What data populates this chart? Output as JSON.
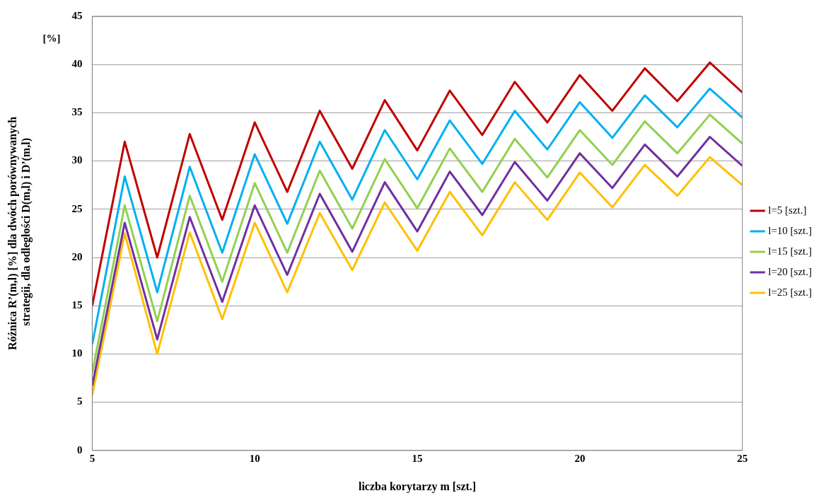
{
  "chart_data": {
    "type": "line",
    "xlabel": "liczba korytarzy m [szt.]",
    "ylabel": "Różnica R’(m,l) [%] dla dwóch porównywanych  strategii, dla odległości D(m,l) i D’(m,l)",
    "annotations": [
      "[%]"
    ],
    "x": [
      5,
      6,
      7,
      8,
      9,
      10,
      11,
      12,
      13,
      14,
      15,
      16,
      17,
      18,
      19,
      20,
      21,
      22,
      23,
      24,
      25
    ],
    "xlim": [
      5,
      25
    ],
    "xticks": [
      5,
      10,
      15,
      20,
      25
    ],
    "ylim": [
      0,
      45
    ],
    "yticks": [
      0,
      5,
      10,
      15,
      20,
      25,
      30,
      35,
      40,
      45
    ],
    "grid": "y",
    "legend": "right",
    "marker": "none",
    "line_style": "solid",
    "series": [
      {
        "name": "l=5 [szt.]",
        "color": "#c00000",
        "values": [
          15,
          32,
          20,
          32.8,
          23.9,
          34,
          26.8,
          35.2,
          29.2,
          36.3,
          31.1,
          37.3,
          32.7,
          38.2,
          34,
          38.9,
          35.2,
          39.6,
          36.2,
          40.2,
          37.1
        ]
      },
      {
        "name": "l=10 [szt.]",
        "color": "#00b0f0",
        "values": [
          11,
          28.4,
          16.4,
          29.4,
          20.5,
          30.7,
          23.5,
          32,
          26,
          33.2,
          28.1,
          34.2,
          29.7,
          35.2,
          31.2,
          36.1,
          32.4,
          36.8,
          33.5,
          37.5,
          34.5
        ]
      },
      {
        "name": "l=15 [szt.]",
        "color": "#92d050",
        "values": [
          8,
          25.4,
          13.4,
          26.4,
          17.5,
          27.7,
          20.5,
          29,
          23,
          30.2,
          25.1,
          31.3,
          26.8,
          32.3,
          28.3,
          33.2,
          29.6,
          34.1,
          30.8,
          34.8,
          31.8
        ]
      },
      {
        "name": "l=20 [szt.]",
        "color": "#7030a0",
        "values": [
          6.7,
          23.6,
          11.5,
          24.2,
          15.4,
          25.4,
          18.2,
          26.6,
          20.6,
          27.8,
          22.7,
          28.9,
          24.4,
          29.9,
          25.9,
          30.8,
          27.2,
          31.7,
          28.4,
          32.5,
          29.5
        ]
      },
      {
        "name": "l=25 [szt.]",
        "color": "#ffc000",
        "values": [
          5.7,
          22.5,
          10,
          22.6,
          13.6,
          23.6,
          16.4,
          24.6,
          18.7,
          25.7,
          20.7,
          26.8,
          22.3,
          27.8,
          23.9,
          28.8,
          25.2,
          29.6,
          26.4,
          30.4,
          27.5
        ]
      }
    ]
  }
}
